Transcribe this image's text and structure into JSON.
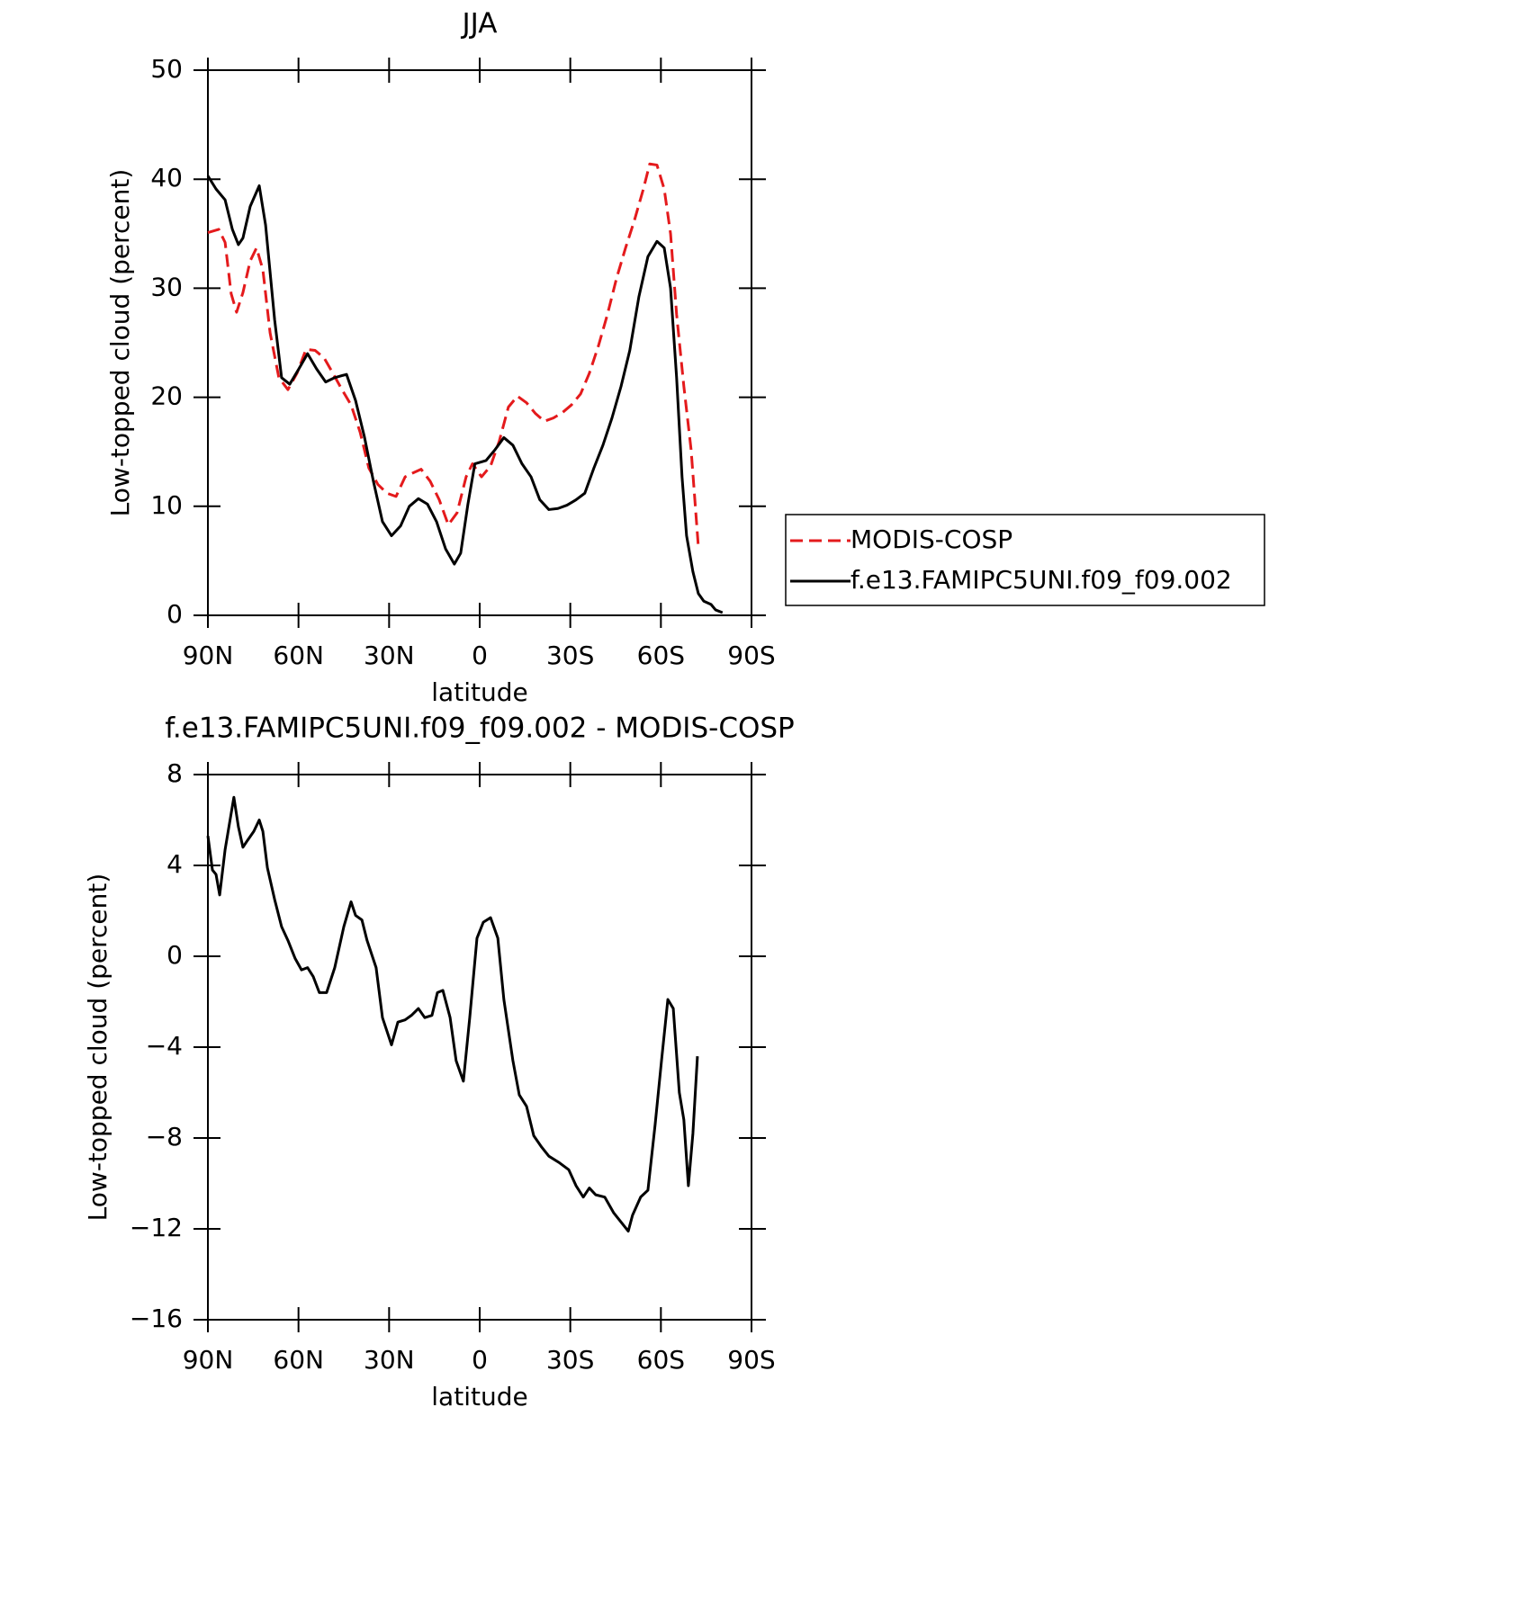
{
  "chart_data": [
    {
      "type": "line",
      "title": "JJA",
      "xlabel": "latitude",
      "ylabel": "Low-topped cloud (percent)",
      "xlim": [
        90,
        -90
      ],
      "xticks": [
        {
          "value": 90,
          "label": "90N"
        },
        {
          "value": 60,
          "label": "60N"
        },
        {
          "value": 30,
          "label": "30N"
        },
        0,
        {
          "value": -30,
          "label": "30S"
        },
        {
          "value": -60,
          "label": "60S"
        },
        {
          "value": -90,
          "label": "90S"
        }
      ],
      "ylim": [
        0,
        50
      ],
      "yticks": [
        0,
        10,
        20,
        30,
        40,
        50
      ],
      "legend": "outside-right",
      "series": [
        {
          "name": "MODIS-COSP",
          "color": "#e41a1c",
          "dash": true,
          "x": [
            90,
            86.4,
            84.3,
            82.3,
            80.5,
            78.4,
            76,
            73.9,
            71.8,
            69.4,
            66.5,
            63.5,
            60.5,
            57.5,
            54.5,
            51.5,
            48.6,
            45.6,
            42.6,
            39.6,
            36.7,
            33.7,
            30.7,
            27.7,
            24.7,
            21.8,
            19.4,
            16.4,
            13.4,
            10.4,
            7.5,
            4.5,
            2.4,
            -0.6,
            -3.6,
            -6.5,
            -9.5,
            -12.5,
            -15.5,
            -18.5,
            -21.4,
            -24.4,
            -27.4,
            -30.4,
            -33.4,
            -36.3,
            -39.3,
            -42.3,
            -45.3,
            -48.3,
            -51.2,
            -54.2,
            -56.3,
            -58.7,
            -61.1,
            -63.2,
            -65.2,
            -67.6,
            -70,
            -72.4
          ],
          "values": [
            35.1,
            35.4,
            34.2,
            29.5,
            27.8,
            29.6,
            32.5,
            33.7,
            31.7,
            25.9,
            21.8,
            20.7,
            22.2,
            24.4,
            24.3,
            23.6,
            22.2,
            20.7,
            19.3,
            16.8,
            13.5,
            12,
            11.2,
            10.9,
            12.7,
            13.1,
            13.4,
            12.3,
            10.6,
            8.3,
            9.4,
            12.7,
            13.9,
            12.7,
            13.7,
            16,
            19.1,
            20.1,
            19.5,
            18.5,
            17.8,
            18.1,
            18.6,
            19.3,
            20.3,
            22.2,
            24.7,
            27.6,
            30.9,
            33.7,
            36.2,
            39.1,
            41.4,
            41.3,
            39.1,
            35,
            27.6,
            21,
            15.2,
            6.3
          ]
        },
        {
          "name": "f.e13.FAMIPC5UNI.f09_f09.002",
          "color": "#000000",
          "dash": false,
          "x": [
            90,
            87.3,
            84.3,
            81.9,
            79.9,
            78.4,
            76,
            73,
            70.9,
            67.9,
            65.6,
            62.9,
            59.9,
            57,
            54,
            51,
            48,
            44.1,
            41.1,
            38.2,
            35.2,
            32.2,
            29.2,
            26.2,
            23.3,
            20.3,
            17.3,
            14.3,
            11.3,
            8.4,
            6.3,
            3.9,
            1.6,
            -2.1,
            -5.1,
            -8,
            -11,
            -14,
            -17,
            -19.9,
            -22.9,
            -25.9,
            -28.9,
            -31.9,
            -34.8,
            -37.8,
            -40.8,
            -43.8,
            -46.8,
            -49.7,
            -52.7,
            -55.7,
            -58.7,
            -61.1,
            -63.2,
            -65.2,
            -67,
            -68.5,
            -70.6,
            -72.4,
            -74.2,
            -76.6,
            -78.1,
            -80.4
          ],
          "values": [
            40.3,
            39.1,
            38.1,
            35.4,
            34,
            34.6,
            37.5,
            39.4,
            35.8,
            27.1,
            21.8,
            21.2,
            22.6,
            24,
            22.6,
            21.4,
            21.8,
            22.1,
            19.7,
            16.4,
            12.3,
            8.6,
            7.3,
            8.2,
            10,
            10.7,
            10.2,
            8.6,
            6.1,
            4.7,
            5.7,
            10.2,
            13.9,
            14.2,
            15.2,
            16.3,
            15.6,
            13.9,
            12.7,
            10.6,
            9.7,
            9.8,
            10.1,
            10.6,
            11.2,
            13.5,
            15.6,
            18.1,
            21,
            24.3,
            29.2,
            32.9,
            34.3,
            33.7,
            30,
            21.8,
            12.7,
            7.3,
            4,
            2,
            1.3,
            1,
            0.5,
            0.25
          ]
        }
      ]
    },
    {
      "type": "line",
      "title": "f.e13.FAMIPC5UNI.f09_f09.002 - MODIS-COSP",
      "xlabel": "latitude",
      "ylabel": "Low-topped cloud (percent)",
      "xlim": [
        90,
        -90
      ],
      "xticks": [
        {
          "value": 90,
          "label": "90N"
        },
        {
          "value": 60,
          "label": "60N"
        },
        {
          "value": 30,
          "label": "30N"
        },
        0,
        {
          "value": -30,
          "label": "30S"
        },
        {
          "value": -60,
          "label": "60S"
        },
        {
          "value": -90,
          "label": "90S"
        }
      ],
      "ylim": [
        -16,
        8
      ],
      "yticks": [
        {
          "value": -16,
          "label": "−16"
        },
        {
          "value": -12,
          "label": "−12"
        },
        {
          "value": -8,
          "label": "−8"
        },
        {
          "value": -4,
          "label": "−4"
        },
        0,
        4,
        8
      ],
      "series": [
        {
          "color": "#000000",
          "dash": false,
          "x": [
            90,
            88.5,
            87.3,
            86.1,
            84.3,
            81.4,
            79.9,
            78.4,
            76.9,
            74.8,
            73,
            71.8,
            70.3,
            67.9,
            65.6,
            63.5,
            61.1,
            59,
            57,
            55.1,
            53.1,
            50.7,
            48,
            45,
            42.6,
            41.1,
            39,
            37.3,
            34.3,
            32.2,
            29.2,
            27.1,
            24.7,
            22.6,
            20.3,
            18.2,
            15.8,
            14,
            12.2,
            9.8,
            7.8,
            5.4,
            3.3,
            0.9,
            -1.2,
            -3.6,
            -6,
            -8,
            -11,
            -13.1,
            -15.5,
            -17.9,
            -20.5,
            -22.9,
            -26.5,
            -29.5,
            -31.9,
            -34.3,
            -36.3,
            -38.4,
            -41.4,
            -44.4,
            -46.8,
            -49.2,
            -50.6,
            -53.3,
            -55.7,
            -58.1,
            -60.2,
            -62.3,
            -64.1,
            -66.1,
            -67.6,
            -69.1,
            -70.6,
            -72.1
          ],
          "values": [
            5.3,
            3.8,
            3.6,
            2.7,
            4.7,
            7,
            5.7,
            4.8,
            5.1,
            5.5,
            6,
            5.5,
            3.9,
            2.5,
            1.3,
            0.7,
            -0.1,
            -0.6,
            -0.5,
            -0.9,
            -1.6,
            -1.6,
            -0.5,
            1.3,
            2.4,
            1.8,
            1.6,
            0.7,
            -0.5,
            -2.7,
            -3.9,
            -2.9,
            -2.8,
            -2.6,
            -2.3,
            -2.7,
            -2.6,
            -1.6,
            -1.5,
            -2.7,
            -4.6,
            -5.5,
            -2.7,
            0.8,
            1.5,
            1.7,
            0.8,
            -1.9,
            -4.6,
            -6.1,
            -6.6,
            -7.9,
            -8.4,
            -8.8,
            -9.1,
            -9.4,
            -10.1,
            -10.6,
            -10.2,
            -10.5,
            -10.6,
            -11.3,
            -11.7,
            -12.1,
            -11.4,
            -10.6,
            -10.3,
            -7.4,
            -4.6,
            -1.9,
            -2.3,
            -6,
            -7.2,
            -10.1,
            -7.8,
            -4.4
          ]
        }
      ]
    }
  ]
}
